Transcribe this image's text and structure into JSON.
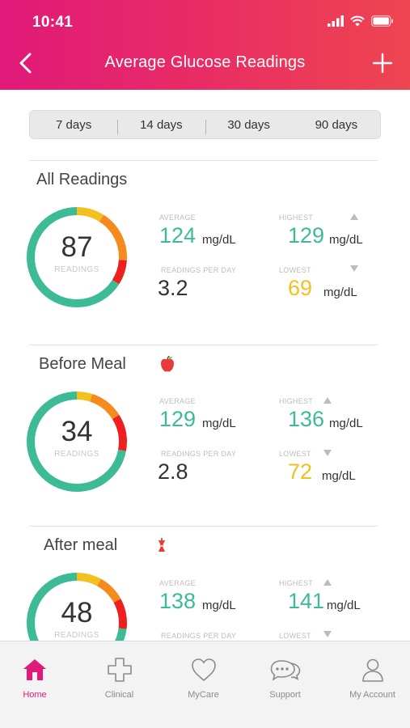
{
  "status_bar": {
    "time": "10:41"
  },
  "nav": {
    "title": "Average Glucose Readings"
  },
  "ranges": [
    "7 days",
    "14 days",
    "30 days",
    "90 days"
  ],
  "labels": {
    "readings": "READINGS",
    "average": "AVERAGE",
    "highest": "HIGHEST",
    "readings_per_day": "READINGS PER DAY",
    "lowest": "LOWEST",
    "unit": "mg/dL"
  },
  "sections": [
    {
      "title": "All Readings",
      "icon": "none",
      "count": "87",
      "average": "124",
      "highest": "129",
      "per_day": "3.2",
      "lowest": "69",
      "lowest_color": "#f2c01f",
      "ring_segments": [
        {
          "color": "#f2c01f",
          "fraction": 0.09
        },
        {
          "color": "#f58a1f",
          "fraction": 0.17
        },
        {
          "color": "#ee1f1f",
          "fraction": 0.08
        },
        {
          "color": "#3dbb96",
          "fraction": 0.66
        }
      ]
    },
    {
      "title": "Before Meal",
      "icon": "apple-icon",
      "count": "34",
      "average": "129",
      "highest": "136",
      "per_day": "2.8",
      "lowest": "72",
      "lowest_color": "#f2c01f",
      "ring_segments": [
        {
          "color": "#f2c01f",
          "fraction": 0.05
        },
        {
          "color": "#f58a1f",
          "fraction": 0.11
        },
        {
          "color": "#ee1f1f",
          "fraction": 0.12
        },
        {
          "color": "#3dbb96",
          "fraction": 0.72
        }
      ]
    },
    {
      "title": "After meal",
      "icon": "apple-core-icon",
      "count": "48",
      "average": "138",
      "highest": "141",
      "per_day": "",
      "lowest": "",
      "lowest_color": "#f2c01f",
      "ring_segments": [
        {
          "color": "#f2c01f",
          "fraction": 0.08
        },
        {
          "color": "#f58a1f",
          "fraction": 0.09
        },
        {
          "color": "#ee1f1f",
          "fraction": 0.1
        },
        {
          "color": "#3dbb96",
          "fraction": 0.73
        }
      ]
    }
  ],
  "tabbar": [
    {
      "label": "Home",
      "icon": "home-icon",
      "active": true
    },
    {
      "label": "Clinical",
      "icon": "medical-cross-icon",
      "active": false
    },
    {
      "label": "MyCare",
      "icon": "heart-icon",
      "active": false
    },
    {
      "label": "Support",
      "icon": "chat-bubbles-icon",
      "active": false
    },
    {
      "label": "My Account",
      "icon": "person-icon",
      "active": false
    }
  ],
  "colors": {
    "brand_start": "#e0197a",
    "brand_end": "#ef4550",
    "green": "#3dbb96",
    "yellow": "#f2c01f",
    "orange": "#f58a1f",
    "red": "#ee1f1f"
  }
}
